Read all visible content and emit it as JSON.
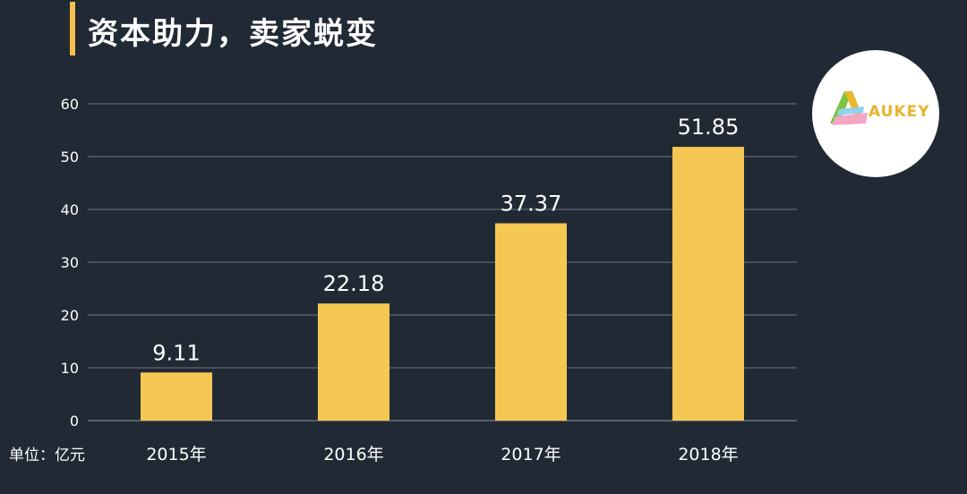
{
  "header": {
    "title": "资本助力，卖家蜕变"
  },
  "logo": {
    "text": "AUKEY"
  },
  "unit_label": "单位：亿元",
  "colors": {
    "background": "#212a34",
    "bar": "#f5c853",
    "accent": "#f5c04e",
    "text": "#ffffff",
    "grid": "#6b7480"
  },
  "chart_data": {
    "type": "bar",
    "categories": [
      "2015年",
      "2016年",
      "2017年",
      "2018年"
    ],
    "values": [
      9.11,
      22.18,
      37.37,
      51.85
    ],
    "data_labels": [
      "9.11",
      "22.18",
      "37.37",
      "51.85"
    ],
    "ylim": [
      0,
      60
    ],
    "yticks": [
      0,
      10,
      20,
      30,
      40,
      50,
      60
    ],
    "grid": true
  }
}
